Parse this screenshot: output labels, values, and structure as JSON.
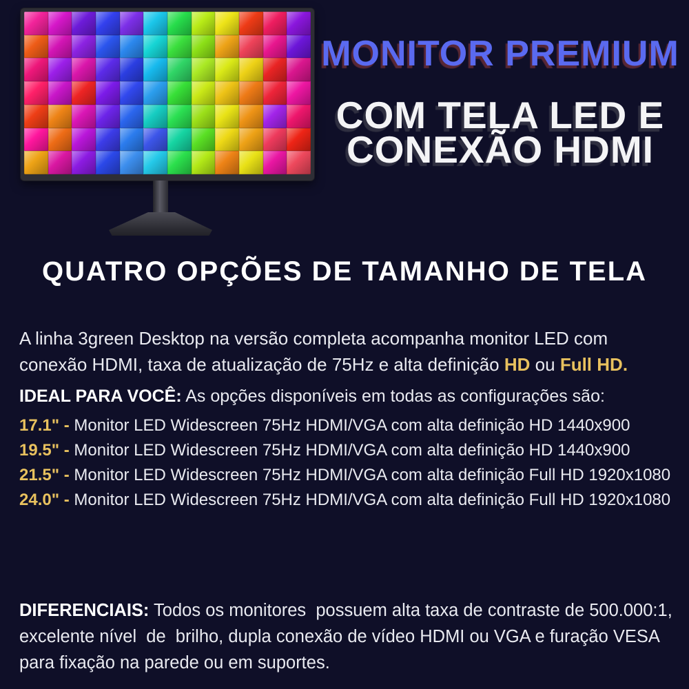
{
  "colors": {
    "background": "#0f0f28",
    "title_blue": "#5a6af0",
    "gold_highlight": "#e8c15e",
    "body_text": "#e9eaf0",
    "monitor_bezel": "#2e2e35"
  },
  "hero": {
    "title": "MONITOR PREMIUM",
    "subtitle_line1": "COM TELA LED E",
    "subtitle_line2": "CONEXÃO HDMI"
  },
  "monitor": {
    "alt": "Monitor LED com wallpaper de cubos coloridos",
    "screen_rows": [
      [
        "#f2239a",
        "#d617c9",
        "#6d1bd9",
        "#3340ee",
        "#7c2fe8",
        "#1bc6ea",
        "#27dd4b",
        "#b8ec17",
        "#eee418",
        "#ee3b16",
        "#ee1d60",
        "#8a16dd"
      ],
      [
        "#ee5c17",
        "#d315b5",
        "#8c23e2",
        "#2b55ee",
        "#2b88ee",
        "#16d5d5",
        "#3bdf3d",
        "#8ce017",
        "#eea317",
        "#ee4259",
        "#e8168e",
        "#6c16d9"
      ],
      [
        "#ee177a",
        "#9c1fe9",
        "#da16ab",
        "#5c2be9",
        "#2b3ee2",
        "#17baee",
        "#30d566",
        "#aae924",
        "#dae917",
        "#eed216",
        "#e92424",
        "#da168e"
      ],
      [
        "#ff2069",
        "#c916c9",
        "#ee2424",
        "#7c1be9",
        "#3148ee",
        "#2b9eee",
        "#37e037",
        "#cae917",
        "#eec316",
        "#ee7a16",
        "#ee2439",
        "#ee16a2"
      ],
      [
        "#ee3e16",
        "#ee8316",
        "#da16b5",
        "#6c24e9",
        "#2b66ee",
        "#16cdc2",
        "#2be052",
        "#9ce019",
        "#e9e316",
        "#ee9316",
        "#a224e9",
        "#ee166c"
      ],
      [
        "#ff169d",
        "#ee6c16",
        "#b916da",
        "#3c3ce9",
        "#2b7cee",
        "#3c55e9",
        "#16d5a2",
        "#5ae024",
        "#eed916",
        "#eea216",
        "#ee3a5c",
        "#ee2416"
      ],
      [
        "#eea316",
        "#da17a2",
        "#8c1be2",
        "#2b48e9",
        "#3c8eee",
        "#24c9e9",
        "#2be04c",
        "#b2e917",
        "#ee8316",
        "#e9e116",
        "#e916a2",
        "#ee485c"
      ]
    ]
  },
  "section_heading": "QUATRO OPÇÕES DE TAMANHO DE TELA",
  "intro": {
    "line1": "A linha 3green Desktop na versão completa acompanha monitor LED com",
    "line2": "conexão HDMI, taxa de atualização de 75Hz e alta definição ",
    "hd": "HD",
    "ou": " ou ",
    "fullhd": "Full HD",
    "period": "."
  },
  "options": {
    "label": "IDEAL PARA VOCÊ:",
    "intro": " As opções disponíveis em todas as configurações são:",
    "items": [
      {
        "size": "17.1\" -",
        "desc": " Monitor LED Widescreen 75Hz HDMI/VGA com alta definição HD 1440x900"
      },
      {
        "size": "19.5\" -",
        "desc": " Monitor LED Widescreen 75Hz HDMI/VGA com alta definição HD 1440x900"
      },
      {
        "size": "21.5\" -",
        "desc": " Monitor LED Widescreen 75Hz HDMI/VGA com alta definição Full HD 1920x1080"
      },
      {
        "size": "24.0\" -",
        "desc": " Monitor LED Widescreen 75Hz HDMI/VGA com alta definição Full HD 1920x1080"
      }
    ]
  },
  "differentials": {
    "label": "DIFERENCIAIS:",
    "line1": " Todos os monitores  possuem alta taxa de contraste de 500.000:1,",
    "line2": "excelente nível  de  brilho, dupla conexão de vídeo HDMI ou VGA e furação VESA",
    "line3": "para fixação na parede ou em suportes."
  }
}
